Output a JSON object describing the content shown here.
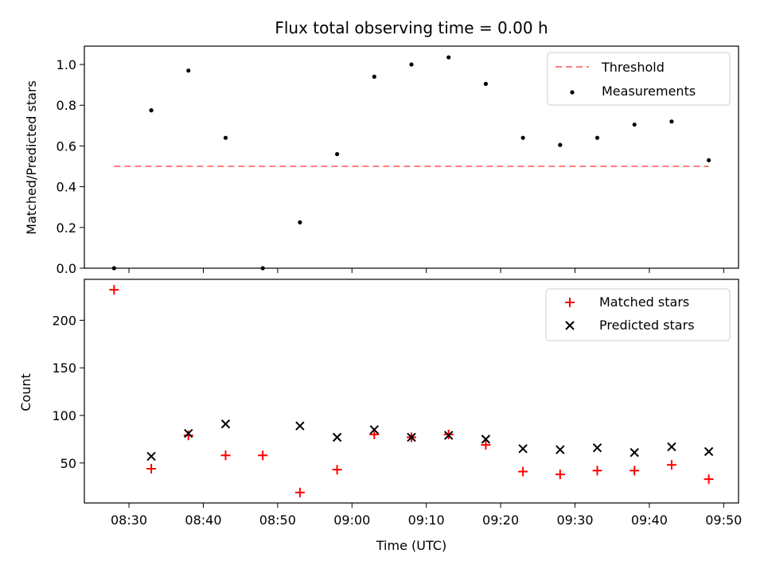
{
  "chart_data": [
    {
      "type": "scatter",
      "title": "Flux total observing time = 0.00 h",
      "xlabel": "",
      "ylabel": "Matched/Predicted stars",
      "ylim": [
        0,
        1.09
      ],
      "yticks": [
        0.0,
        0.2,
        0.4,
        0.6,
        0.8,
        1.0
      ],
      "ytick_labels": [
        "0.0",
        "0.2",
        "0.4",
        "0.6",
        "0.8",
        "1.0"
      ],
      "legend_position": "top-right",
      "threshold": {
        "name": "Threshold",
        "value": 0.5,
        "x_start": "08:28",
        "x_end": "09:48",
        "color": "#ff7f7f"
      },
      "series": [
        {
          "name": "Measurements",
          "color": "#000000",
          "marker": "dot",
          "x": [
            "08:28",
            "08:33",
            "08:38",
            "08:43",
            "08:48",
            "08:53",
            "08:58",
            "09:03",
            "09:08",
            "09:13",
            "09:18",
            "09:23",
            "09:28",
            "09:33",
            "09:38",
            "09:43",
            "09:48"
          ],
          "y": [
            0.0,
            0.775,
            0.97,
            0.64,
            0.0,
            0.225,
            0.56,
            0.94,
            1.0,
            1.035,
            0.905,
            0.64,
            0.605,
            0.64,
            0.705,
            0.72,
            0.53
          ]
        }
      ]
    },
    {
      "type": "scatter",
      "title": "",
      "xlabel": "Time (UTC)",
      "ylabel": "Count",
      "ylim": [
        8,
        243
      ],
      "yticks": [
        50,
        100,
        150,
        200
      ],
      "ytick_labels": [
        "50",
        "100",
        "150",
        "200"
      ],
      "xlim": [
        "08:24",
        "09:52"
      ],
      "xticks": [
        "08:30",
        "08:40",
        "08:50",
        "09:00",
        "09:10",
        "09:20",
        "09:30",
        "09:40",
        "09:50"
      ],
      "legend_position": "top-right",
      "series": [
        {
          "name": "Matched stars",
          "color": "#ff0000",
          "marker": "plus",
          "x": [
            "08:28",
            "08:33",
            "08:38",
            "08:43",
            "08:48",
            "08:53",
            "08:58",
            "09:03",
            "09:08",
            "09:13",
            "09:18",
            "09:23",
            "09:28",
            "09:33",
            "09:38",
            "09:43",
            "09:48"
          ],
          "y": [
            232,
            44,
            79,
            58,
            58,
            19,
            43,
            80,
            77,
            80,
            69,
            41,
            38,
            42,
            42,
            48,
            33
          ]
        },
        {
          "name": "Predicted stars",
          "color": "#000000",
          "marker": "x",
          "x": [
            "08:33",
            "08:38",
            "08:43",
            "08:53",
            "08:58",
            "09:03",
            "09:08",
            "09:13",
            "09:18",
            "09:23",
            "09:28",
            "09:33",
            "09:38",
            "09:43",
            "09:48"
          ],
          "y": [
            57,
            81,
            91,
            89,
            77,
            85,
            77,
            79,
            75,
            65,
            64,
            66,
            61,
            67,
            62
          ]
        }
      ]
    }
  ]
}
